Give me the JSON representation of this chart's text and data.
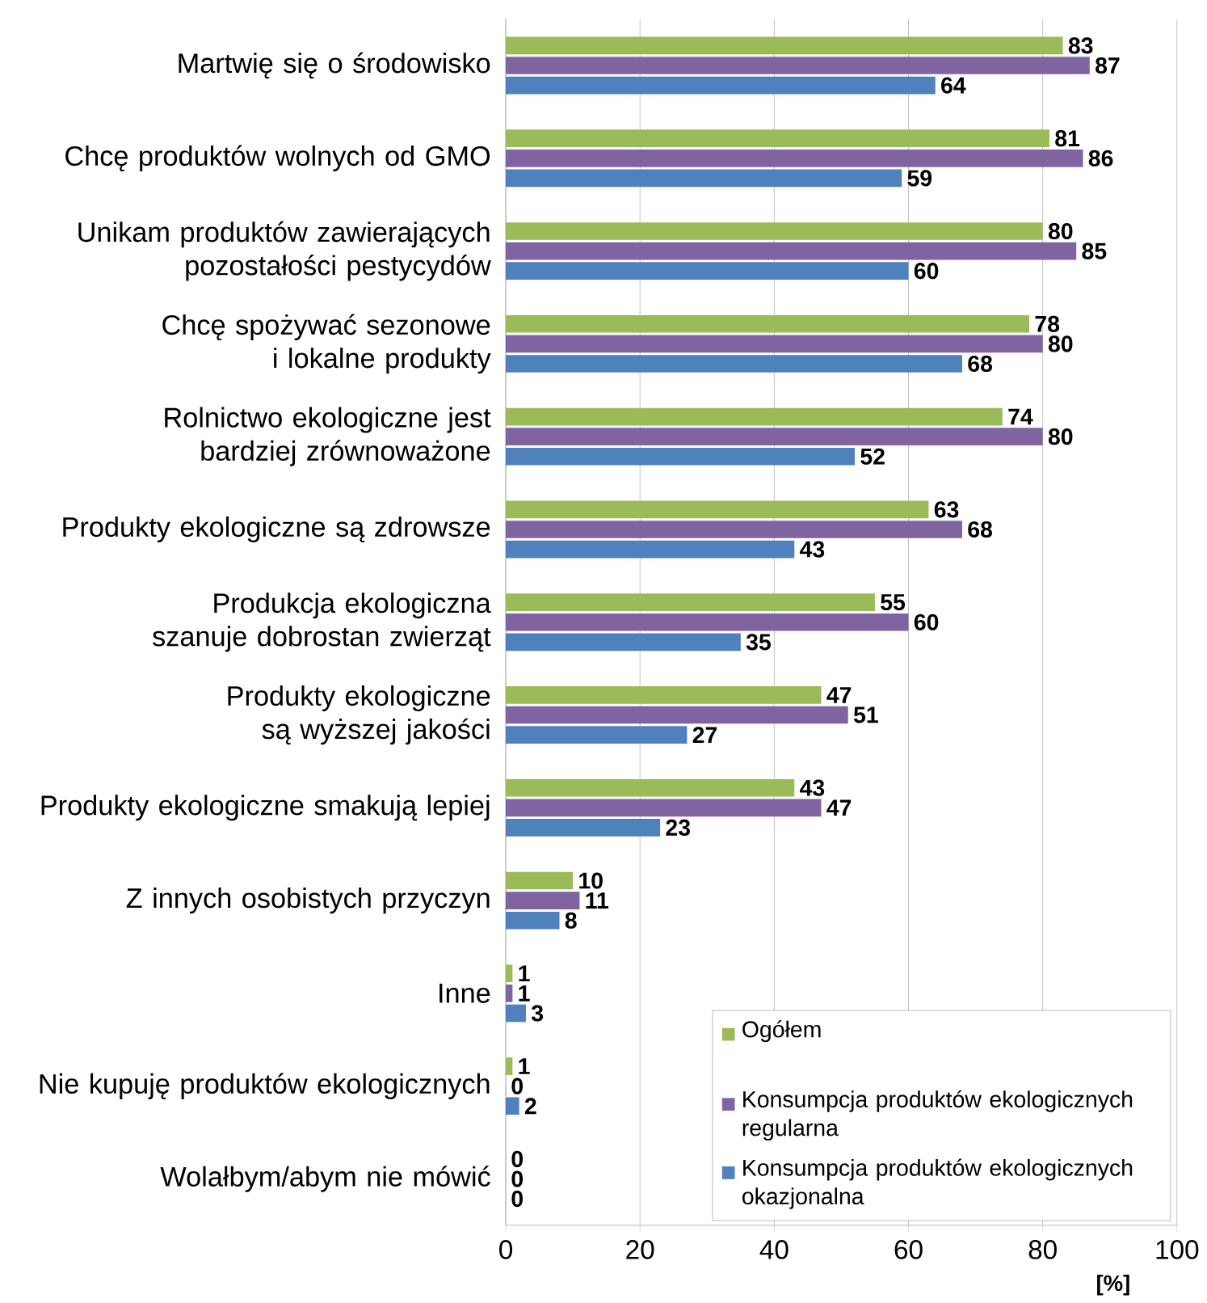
{
  "chart_data": {
    "type": "bar",
    "orientation": "horizontal",
    "categories": [
      "Martwię się o środowisko",
      "Chcę produktów wolnych od GMO",
      "Unikam produktów zawierających pozostałości pestycydów",
      "Chcę spożywać sezonowe i lokalne produkty",
      "Rolnictwo ekologiczne jest bardziej zrównoważone",
      "Produkty ekologiczne są zdrowsze",
      "Produkcja ekologiczna szanuje dobrostan zwierząt",
      "Produkty ekologiczne są wyższej jakości",
      "Produkty ekologiczne smakują lepiej",
      "Z innych osobistych przyczyn",
      "Inne",
      "Nie kupuję produktów ekologicznych",
      "Wolałbym/abym nie mówić"
    ],
    "series": [
      {
        "name": "Ogółem",
        "color": "#9bbb59",
        "values": [
          83,
          81,
          80,
          78,
          74,
          63,
          55,
          47,
          43,
          10,
          1,
          1,
          0
        ]
      },
      {
        "name": "Konsumpcja produktów ekologicznych regularna",
        "color": "#8064a2",
        "values": [
          87,
          86,
          85,
          80,
          80,
          68,
          60,
          51,
          47,
          11,
          1,
          0,
          0
        ]
      },
      {
        "name": "Konsumpcja produktów ekologicznych okazjonalna",
        "color": "#4f81bd",
        "values": [
          64,
          59,
          60,
          68,
          52,
          43,
          35,
          27,
          23,
          8,
          3,
          2,
          0
        ]
      }
    ],
    "xlabel": "[%]",
    "xlim": [
      0,
      100
    ],
    "xticks": [
      0,
      20,
      40,
      60,
      80,
      100
    ],
    "grid": "x",
    "legend": "bottom right",
    "data_labels": true
  }
}
